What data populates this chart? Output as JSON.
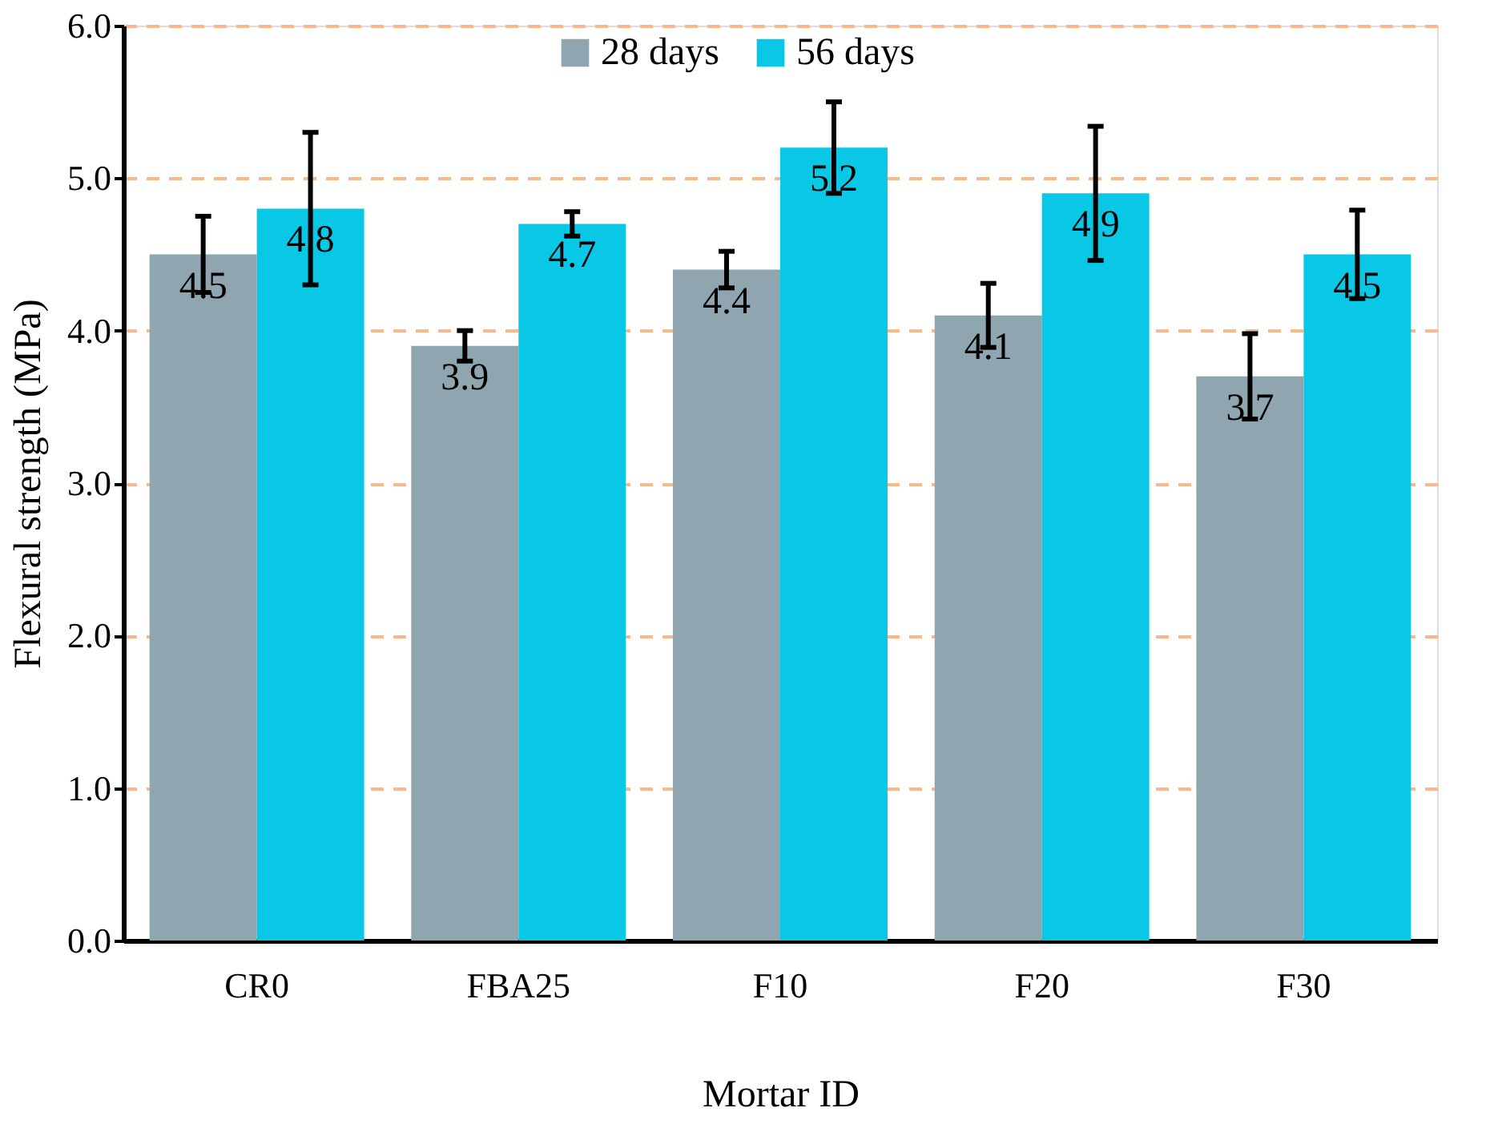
{
  "chart_data": {
    "type": "bar",
    "xlabel": "Mortar ID",
    "ylabel": "Flexural strength (MPa)",
    "categories": [
      "CR0",
      "FBA25",
      "F10",
      "F20",
      "F30"
    ],
    "series": [
      {
        "name": "28 days",
        "color": "#8fa5b0",
        "values": [
          4.5,
          3.9,
          4.4,
          4.1,
          3.7
        ],
        "errors": [
          0.25,
          0.1,
          0.12,
          0.21,
          0.28
        ]
      },
      {
        "name": "56 days",
        "color": "#08c8e6",
        "values": [
          4.8,
          4.7,
          5.2,
          4.9,
          4.5
        ],
        "errors": [
          0.5,
          0.08,
          0.3,
          0.44,
          0.29
        ]
      }
    ],
    "ylim": [
      0,
      6
    ],
    "yticks": [
      {
        "value": 0,
        "label": "0.0"
      },
      {
        "value": 1,
        "label": "1.0"
      },
      {
        "value": 2,
        "label": "2.0"
      },
      {
        "value": 3,
        "label": "3.0"
      },
      {
        "value": 4,
        "label": "4.0"
      },
      {
        "value": 5,
        "label": "5.0"
      },
      {
        "value": 6,
        "label": "6.0"
      }
    ],
    "grid": "y",
    "legend": "top",
    "data_labels": true
  }
}
